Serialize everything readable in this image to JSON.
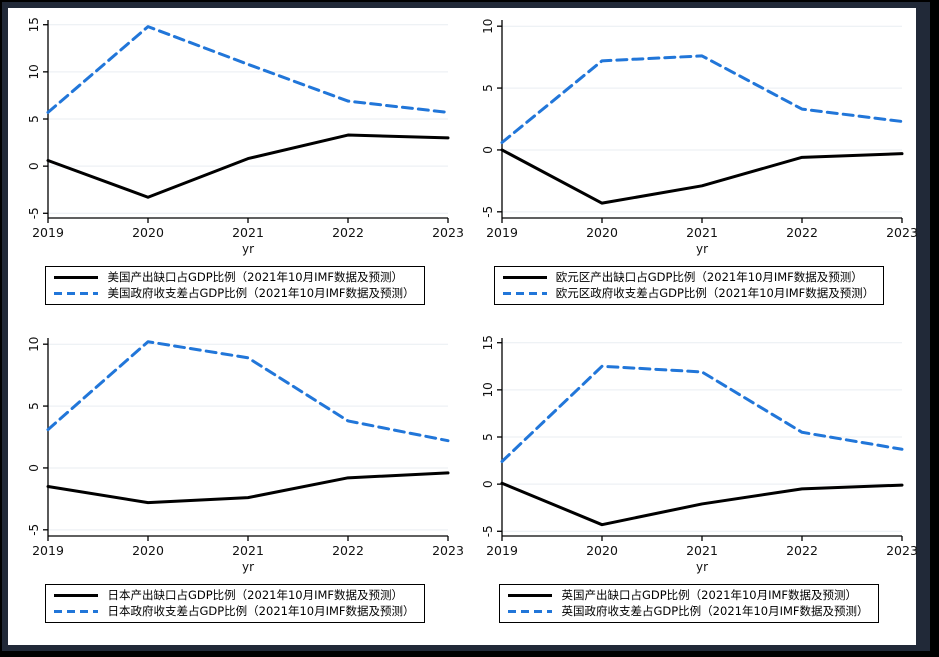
{
  "page": {
    "outer_border_color": "#000000",
    "inner_border_color": "#212938",
    "canvas_color": "#ffffff"
  },
  "colors": {
    "output_gap_line": "#000000",
    "balance_line": "#2176d9",
    "gridline": "#e9edf2",
    "axis": "#000000",
    "tick_text": "#111111"
  },
  "chart_data": [
    {
      "type": "line",
      "region": "美国",
      "x": [
        2019,
        2020,
        2021,
        2022,
        2023
      ],
      "xlabel": "yr",
      "yticks": [
        -5,
        0,
        5,
        10,
        15
      ],
      "ylim": [
        -5.5,
        15.5
      ],
      "grid": true,
      "legend_position": "bottom",
      "series": [
        {
          "name": "美国产出缺口占GDP比例（2021年10月IMF数据及预测）",
          "style": "solid",
          "color": "#000000",
          "values": [
            0.6,
            -3.3,
            0.8,
            3.3,
            3.0
          ]
        },
        {
          "name": "美国政府收支差占GDP比例（2021年10月IMF数据及预测）",
          "style": "dashed",
          "color": "#2176d9",
          "values": [
            5.7,
            14.8,
            10.8,
            6.9,
            5.7
          ]
        }
      ]
    },
    {
      "type": "line",
      "region": "欧元区",
      "x": [
        2019,
        2020,
        2021,
        2022,
        2023
      ],
      "xlabel": "yr",
      "yticks": [
        -5,
        0,
        5,
        10
      ],
      "ylim": [
        -5.5,
        10.5
      ],
      "grid": true,
      "legend_position": "bottom",
      "series": [
        {
          "name": "欧元区产出缺口占GDP比例（2021年10月IMF数据及预测）",
          "style": "solid",
          "color": "#000000",
          "values": [
            0.0,
            -4.3,
            -2.9,
            -0.6,
            -0.3
          ]
        },
        {
          "name": "欧元区政府收支差占GDP比例（2021年10月IMF数据及预测）",
          "style": "dashed",
          "color": "#2176d9",
          "values": [
            0.6,
            7.2,
            7.6,
            3.3,
            2.3
          ]
        }
      ]
    },
    {
      "type": "line",
      "region": "日本",
      "x": [
        2019,
        2020,
        2021,
        2022,
        2023
      ],
      "xlabel": "yr",
      "yticks": [
        -5,
        0,
        5,
        10
      ],
      "ylim": [
        -5.5,
        10.5
      ],
      "grid": true,
      "legend_position": "bottom",
      "series": [
        {
          "name": "日本产出缺口占GDP比例（2021年10月IMF数据及预测）",
          "style": "solid",
          "color": "#000000",
          "values": [
            -1.5,
            -2.8,
            -2.4,
            -0.8,
            -0.4
          ]
        },
        {
          "name": "日本政府收支差占GDP比例（2021年10月IMF数据及预测）",
          "style": "dashed",
          "color": "#2176d9",
          "values": [
            3.1,
            10.2,
            8.9,
            3.8,
            2.2
          ]
        }
      ]
    },
    {
      "type": "line",
      "region": "英国",
      "x": [
        2019,
        2020,
        2021,
        2022,
        2023
      ],
      "xlabel": "yr",
      "yticks": [
        -5,
        0,
        5,
        10,
        15
      ],
      "ylim": [
        -5.5,
        15.5
      ],
      "grid": true,
      "legend_position": "bottom",
      "series": [
        {
          "name": "英国产出缺口占GDP比例（2021年10月IMF数据及预测）",
          "style": "solid",
          "color": "#000000",
          "values": [
            0.1,
            -4.3,
            -2.1,
            -0.5,
            -0.1
          ]
        },
        {
          "name": "英国政府收支差占GDP比例（2021年10月IMF数据及预测）",
          "style": "dashed",
          "color": "#2176d9",
          "values": [
            2.4,
            12.5,
            11.9,
            5.5,
            3.7
          ]
        }
      ]
    }
  ]
}
